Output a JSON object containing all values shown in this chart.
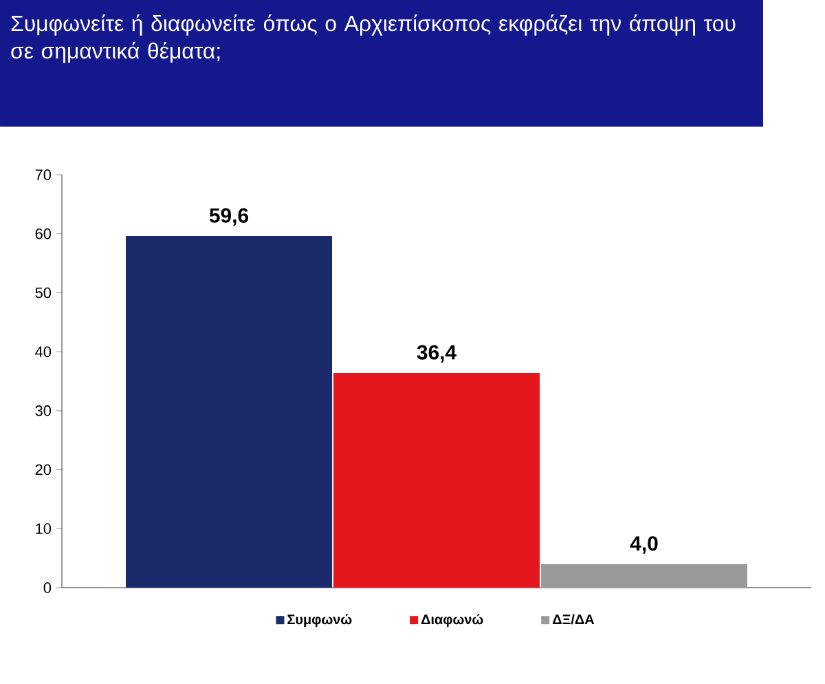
{
  "chart_data": {
    "type": "bar",
    "title": "Συμφωνείτε ή διαφωνείτε όπως ο Αρχιεπίσκοπος εκφράζει την άποψη του σε σημαντικά θέματα;",
    "categories": [
      null
    ],
    "series": [
      {
        "name": "Συμφωνώ",
        "color": "#1b2a6b",
        "values": [
          59.6
        ],
        "value_labels": [
          "59,6"
        ]
      },
      {
        "name": "Διαφωνώ",
        "color": "#e3171c",
        "values": [
          36.4
        ],
        "value_labels": [
          "36,4"
        ]
      },
      {
        "name": "ΔΞ/ΔΑ",
        "color": "#9a9a9a",
        "values": [
          4.0
        ],
        "value_labels": [
          "4,0"
        ]
      }
    ],
    "ylim": [
      0,
      70
    ],
    "yticks": [
      0,
      10,
      20,
      30,
      40,
      50,
      60,
      70
    ],
    "grid": false,
    "legend": "bottom"
  }
}
